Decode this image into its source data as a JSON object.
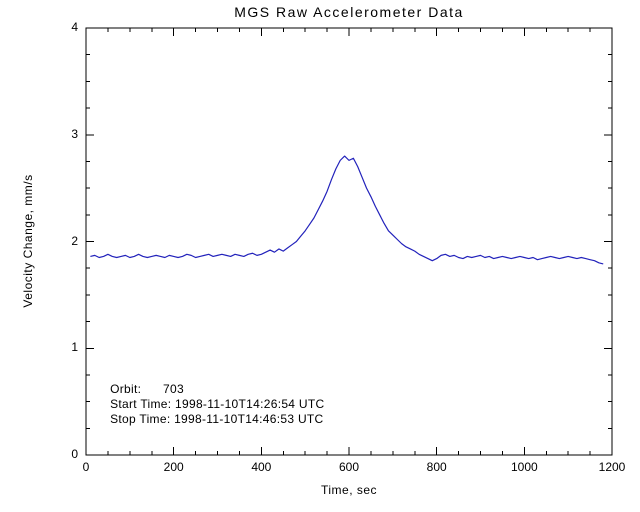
{
  "chart_data": {
    "type": "line",
    "title": "MGS Raw Accelerometer Data",
    "xlabel": "Time, sec",
    "ylabel": "Velocity Change, mm/s",
    "xlim": [
      0,
      1200
    ],
    "ylim": [
      0,
      4
    ],
    "x_ticks": [
      0,
      200,
      400,
      600,
      800,
      1000,
      1200
    ],
    "y_ticks": [
      0,
      1,
      2,
      3,
      4
    ],
    "x_minor_step": 50,
    "y_minor_step": 0.25,
    "grid": false,
    "legend": false,
    "line_color": "#2222bb",
    "axis_color": "#000000",
    "series": [
      {
        "name": "Velocity Change",
        "x": [
          10,
          20,
          30,
          40,
          50,
          60,
          70,
          80,
          90,
          100,
          110,
          120,
          130,
          140,
          150,
          160,
          170,
          180,
          190,
          200,
          210,
          220,
          230,
          240,
          250,
          260,
          270,
          280,
          290,
          300,
          310,
          320,
          330,
          340,
          350,
          360,
          370,
          380,
          390,
          400,
          410,
          420,
          430,
          440,
          450,
          460,
          470,
          480,
          490,
          500,
          510,
          520,
          530,
          540,
          550,
          560,
          570,
          580,
          590,
          600,
          610,
          620,
          630,
          640,
          650,
          660,
          670,
          680,
          690,
          700,
          710,
          720,
          730,
          740,
          750,
          760,
          770,
          780,
          790,
          800,
          810,
          820,
          830,
          840,
          850,
          860,
          870,
          880,
          890,
          900,
          910,
          920,
          930,
          940,
          950,
          960,
          970,
          980,
          990,
          1000,
          1010,
          1020,
          1030,
          1040,
          1050,
          1060,
          1070,
          1080,
          1090,
          1100,
          1110,
          1120,
          1130,
          1140,
          1150,
          1160,
          1170,
          1180
        ],
        "y": [
          1.86,
          1.87,
          1.85,
          1.86,
          1.88,
          1.86,
          1.85,
          1.86,
          1.87,
          1.85,
          1.86,
          1.88,
          1.86,
          1.85,
          1.86,
          1.87,
          1.86,
          1.85,
          1.87,
          1.86,
          1.85,
          1.86,
          1.88,
          1.87,
          1.85,
          1.86,
          1.87,
          1.88,
          1.86,
          1.87,
          1.88,
          1.87,
          1.86,
          1.88,
          1.87,
          1.86,
          1.88,
          1.89,
          1.87,
          1.88,
          1.9,
          1.92,
          1.9,
          1.93,
          1.91,
          1.94,
          1.97,
          2.0,
          2.05,
          2.1,
          2.16,
          2.22,
          2.3,
          2.38,
          2.47,
          2.58,
          2.68,
          2.76,
          2.8,
          2.76,
          2.78,
          2.7,
          2.6,
          2.5,
          2.42,
          2.33,
          2.25,
          2.17,
          2.1,
          2.06,
          2.02,
          1.98,
          1.95,
          1.93,
          1.91,
          1.88,
          1.86,
          1.84,
          1.82,
          1.84,
          1.87,
          1.88,
          1.86,
          1.87,
          1.85,
          1.84,
          1.86,
          1.85,
          1.86,
          1.87,
          1.85,
          1.86,
          1.84,
          1.85,
          1.86,
          1.85,
          1.84,
          1.85,
          1.86,
          1.85,
          1.84,
          1.85,
          1.83,
          1.84,
          1.85,
          1.86,
          1.85,
          1.84,
          1.85,
          1.86,
          1.85,
          1.84,
          1.85,
          1.84,
          1.83,
          1.82,
          1.8,
          1.79
        ]
      }
    ],
    "annotations": [
      {
        "label": "Orbit:      703",
        "x": 55,
        "y": 0.62
      },
      {
        "label": "Start Time: 1998-11-10T14:26:54 UTC",
        "x": 55,
        "y": 0.48
      },
      {
        "label": "Stop Time: 1998-11-10T14:46:53 UTC",
        "x": 55,
        "y": 0.34
      }
    ]
  }
}
